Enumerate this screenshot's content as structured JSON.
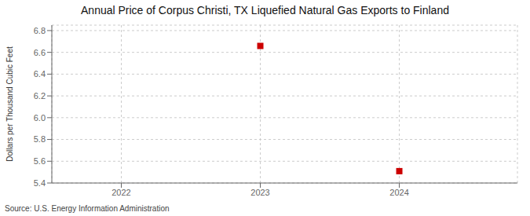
{
  "chart_data": {
    "type": "scatter",
    "title": "Annual Price of Corpus Christi, TX Liquefied Natural Gas Exports to Finland",
    "y_label": "Dollars per Thousand Cubic Feet",
    "annotations": [
      "Source: U.S. Energy Information Administration"
    ],
    "x": [
      2023,
      2024
    ],
    "values": [
      6.659,
      5.509
    ],
    "color": "#cc0000",
    "marker": "square",
    "xlim": [
      2021.5,
      2024.85
    ],
    "xticks": [
      2022,
      2023,
      2024
    ],
    "ylim": [
      5.4,
      6.85
    ],
    "yticks": [
      5.4,
      5.6,
      5.8,
      {
        "value": 6,
        "label": "6.0"
      },
      6.2,
      6.4,
      6.6,
      6.8
    ],
    "grid": true
  }
}
